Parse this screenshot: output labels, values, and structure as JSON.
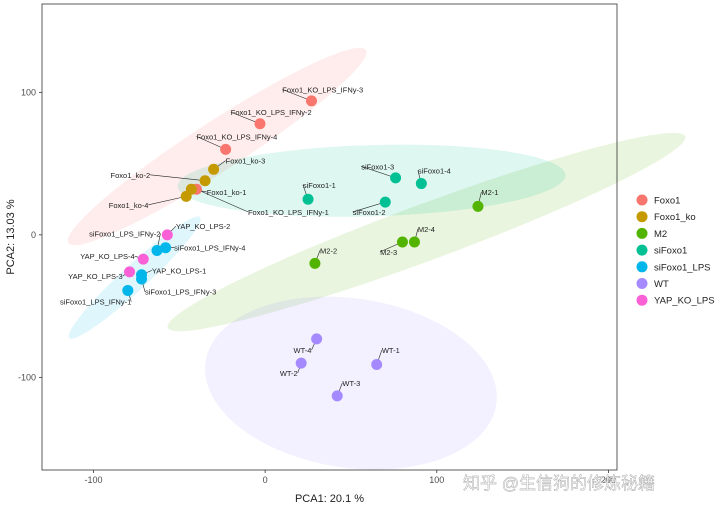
{
  "chart_data": {
    "type": "scatter",
    "title": "",
    "xlabel": "PCA1: 20.1 %",
    "ylabel": "PCA2: 13.03 %",
    "xlim": [
      -130,
      205
    ],
    "ylim": [
      -165,
      162
    ],
    "xticks": [
      -100,
      0,
      100,
      200
    ],
    "yticks": [
      -100,
      0,
      100
    ],
    "grid": false,
    "legend_position": "right",
    "groups": [
      {
        "name": "Foxo1",
        "color": "#F8766D",
        "ellipse": {
          "cx": -28,
          "cy": 62,
          "rx": 110,
          "ry": 16,
          "angle": 38
        }
      },
      {
        "name": "Foxo1_ko",
        "color": "#C49A00",
        "ellipse": null
      },
      {
        "name": "M2",
        "color": "#53B400",
        "ellipse": {
          "cx": 94,
          "cy": 2,
          "rx": 165,
          "ry": 19,
          "angle": 24
        }
      },
      {
        "name": "siFoxo1",
        "color": "#00C094",
        "ellipse": {
          "cx": 62,
          "cy": 38,
          "rx": 113,
          "ry": 25,
          "angle": 2
        }
      },
      {
        "name": "siFoxo1_LPS",
        "color": "#00B6EB",
        "ellipse": {
          "cx": -76,
          "cy": -30,
          "rx": 57,
          "ry": 8,
          "angle": 48
        }
      },
      {
        "name": "WT",
        "color": "#A58AFF",
        "ellipse": {
          "cx": 50,
          "cy": -104,
          "rx": 86,
          "ry": 59,
          "angle": -10
        }
      },
      {
        "name": "YAP_KO_LPS",
        "color": "#FB61D7",
        "ellipse": null
      }
    ],
    "points": [
      {
        "label": "Foxo1_KO_LPS_IFNy-3",
        "group": "Foxo1",
        "x": 27,
        "y": 94,
        "lx": 10,
        "ly": 100,
        "anchor": "start"
      },
      {
        "label": "Foxo1_KO_LPS_IFNy-2",
        "group": "Foxo1",
        "x": -3,
        "y": 78,
        "lx": -20,
        "ly": 84,
        "anchor": "start"
      },
      {
        "label": "Foxo1_KO_LPS_IFNy-4",
        "group": "Foxo1",
        "x": -23,
        "y": 60,
        "lx": -40,
        "ly": 67,
        "anchor": "start"
      },
      {
        "label": "Foxo1_KO_LPS_IFNy-1",
        "group": "Foxo1",
        "x": -40,
        "y": 32,
        "lx": -10,
        "ly": 14,
        "anchor": "start"
      },
      {
        "label": "Foxo1_ko-3",
        "group": "Foxo1_ko",
        "x": -30,
        "y": 46,
        "lx": -23,
        "ly": 50,
        "anchor": "start"
      },
      {
        "label": "Foxo1_ko-2",
        "group": "Foxo1_ko",
        "x": -35,
        "y": 38,
        "lx": -67,
        "ly": 40,
        "anchor": "end"
      },
      {
        "label": "Foxo1_ko-1",
        "group": "Foxo1_ko",
        "x": -43,
        "y": 32,
        "lx": -34,
        "ly": 28,
        "anchor": "start"
      },
      {
        "label": "Foxo1_ko-4",
        "group": "Foxo1_ko",
        "x": -46,
        "y": 27,
        "lx": -68,
        "ly": 19,
        "anchor": "end"
      },
      {
        "label": "M2-1",
        "group": "M2",
        "x": 124,
        "y": 20,
        "lx": 126,
        "ly": 28,
        "anchor": "start"
      },
      {
        "label": "M2-2",
        "group": "M2",
        "x": 29,
        "y": -20,
        "lx": 32,
        "ly": -13,
        "anchor": "start"
      },
      {
        "label": "M2-3",
        "group": "M2",
        "x": 80,
        "y": -5,
        "lx": 67,
        "ly": -14,
        "anchor": "start"
      },
      {
        "label": "M2-4",
        "group": "M2",
        "x": 87,
        "y": -5,
        "lx": 89,
        "ly": 2,
        "anchor": "start"
      },
      {
        "label": "siFoxo1-1",
        "group": "siFoxo1",
        "x": 25,
        "y": 25,
        "lx": 22,
        "ly": 33,
        "anchor": "start"
      },
      {
        "label": "siFoxo1-2",
        "group": "siFoxo1",
        "x": 70,
        "y": 23,
        "lx": 51,
        "ly": 14,
        "anchor": "start"
      },
      {
        "label": "siFoxo1-3",
        "group": "siFoxo1",
        "x": 76,
        "y": 40,
        "lx": 56,
        "ly": 46,
        "anchor": "start"
      },
      {
        "label": "siFoxo1-4",
        "group": "siFoxo1",
        "x": 91,
        "y": 36,
        "lx": 89,
        "ly": 43,
        "anchor": "start"
      },
      {
        "label": "siFoxo1_LPS_IFNy-4",
        "group": "siFoxo1_LPS",
        "x": -58,
        "y": -9,
        "lx": -53,
        "ly": -11,
        "anchor": "start"
      },
      {
        "label": "siFoxo1_LPS_IFNy-2",
        "group": "siFoxo1_LPS",
        "x": -63,
        "y": -11,
        "lx": -61,
        "ly": -1,
        "anchor": "end"
      },
      {
        "label": "YAP_KO_LPS-1",
        "group": "siFoxo1_LPS",
        "x": -72,
        "y": -28,
        "lx": -66,
        "ly": -27,
        "anchor": "start"
      },
      {
        "label": "siFoxo1_LPS_IFNy-1",
        "group": "siFoxo1_LPS",
        "x": -80,
        "y": -39,
        "lx": -78,
        "ly": -49,
        "anchor": "end"
      },
      {
        "label": "siFoxo1_LPS_IFNy-3",
        "group": "siFoxo1_LPS",
        "x": -72,
        "y": -31,
        "lx": -70,
        "ly": -42,
        "anchor": "start"
      },
      {
        "label": "WT-1",
        "group": "WT",
        "x": 65,
        "y": -91,
        "lx": 68,
        "ly": -83,
        "anchor": "start"
      },
      {
        "label": "WT-2",
        "group": "WT",
        "x": 21,
        "y": -90,
        "lx": 19,
        "ly": -99,
        "anchor": "end"
      },
      {
        "label": "WT-3",
        "group": "WT",
        "x": 42,
        "y": -113,
        "lx": 45,
        "ly": -106,
        "anchor": "start"
      },
      {
        "label": "WT-4",
        "group": "WT",
        "x": 30,
        "y": -73,
        "lx": 27,
        "ly": -83,
        "anchor": "end"
      },
      {
        "label": "YAP_KO_LPS-2",
        "group": "YAP_KO_LPS",
        "x": -57,
        "y": 0,
        "lx": -52,
        "ly": 4,
        "anchor": "start"
      },
      {
        "label": "YAP_KO_LPS-4",
        "group": "YAP_KO_LPS",
        "x": -71,
        "y": -17,
        "lx": -76,
        "ly": -17,
        "anchor": "end"
      },
      {
        "label": "YAP_KO_LPS-3",
        "group": "YAP_KO_LPS",
        "x": -79,
        "y": -26,
        "lx": -83,
        "ly": -31,
        "anchor": "end"
      }
    ]
  },
  "watermark": "知乎 @生信狗的修炼秘籍"
}
